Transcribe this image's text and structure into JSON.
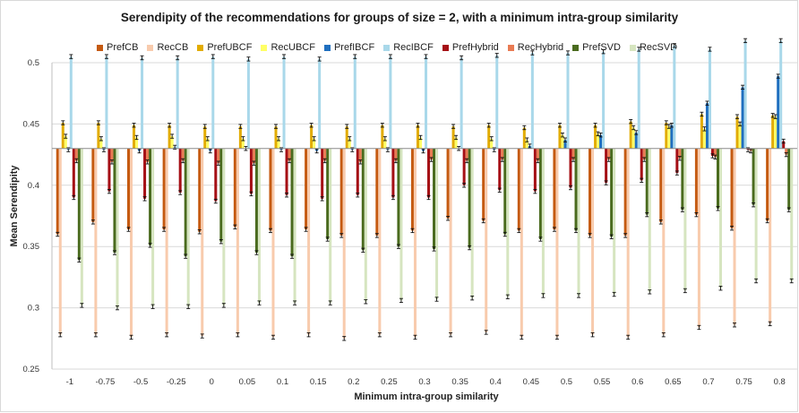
{
  "chart_data": {
    "type": "bar",
    "title": "Serendipity of the recommendations for groups of size = 2, with a minimum intra-group similarity",
    "xlabel": "Minimum intra-group similarity",
    "ylabel": "Mean Serendipity",
    "ylim": [
      0.25,
      0.5
    ],
    "yticks": [
      "0.25",
      "0.3",
      "0.35",
      "0.4",
      "0.45",
      "0.5"
    ],
    "baseline": 0.43,
    "grid": true,
    "legend_position": "top",
    "categories": [
      "-1",
      "-0.75",
      "-0.5",
      "-0.25",
      "0",
      "0.05",
      "0.1",
      "0.15",
      "0.2",
      "0.25",
      "0.3",
      "0.35",
      "0.4",
      "0.45",
      "0.5",
      "0.55",
      "0.6",
      "0.65",
      "0.7",
      "0.75",
      "0.8"
    ],
    "series": [
      {
        "name": "PrefCB",
        "color": "#c55a11",
        "values": [
          0.36,
          0.37,
          0.364,
          0.364,
          0.362,
          0.366,
          0.363,
          0.364,
          0.359,
          0.359,
          0.363,
          0.373,
          0.371,
          0.363,
          0.364,
          0.359,
          0.359,
          0.37,
          0.376,
          0.365,
          0.371
        ]
      },
      {
        "name": "RecCB",
        "color": "#f8cbad",
        "values": [
          0.278,
          0.278,
          0.276,
          0.278,
          0.277,
          0.278,
          0.276,
          0.278,
          0.275,
          0.278,
          0.276,
          0.278,
          0.28,
          0.276,
          0.276,
          0.278,
          0.276,
          0.278,
          0.284,
          0.286,
          0.287
        ]
      },
      {
        "name": "PrefUBCF",
        "color": "#e2ac00",
        "values": [
          0.451,
          0.451,
          0.449,
          0.449,
          0.448,
          0.448,
          0.448,
          0.449,
          0.448,
          0.449,
          0.449,
          0.448,
          0.449,
          0.447,
          0.449,
          0.449,
          0.452,
          0.451,
          0.458,
          0.456,
          0.457
        ]
      },
      {
        "name": "RecUBCF",
        "color": "#ffff66",
        "values": [
          0.44,
          0.438,
          0.439,
          0.44,
          0.438,
          0.438,
          0.438,
          0.438,
          0.438,
          0.438,
          0.439,
          0.439,
          0.438,
          0.437,
          0.441,
          0.442,
          0.447,
          0.448,
          0.446,
          0.45,
          0.456
        ]
      },
      {
        "name": "PrefIBCF",
        "color": "#1f6fbf",
        "values": [
          0.429,
          0.429,
          0.428,
          0.431,
          0.428,
          0.43,
          0.429,
          0.428,
          0.429,
          0.429,
          0.428,
          0.43,
          0.429,
          0.432,
          0.437,
          0.441,
          0.443,
          0.449,
          0.467,
          0.48,
          0.489
        ]
      },
      {
        "name": "RecIBCF",
        "color": "#a9d8ea",
        "values": [
          0.505,
          0.505,
          0.504,
          0.504,
          0.505,
          0.503,
          0.505,
          0.503,
          0.505,
          0.505,
          0.505,
          0.504,
          0.506,
          0.508,
          0.508,
          0.509,
          0.511,
          0.514,
          0.511,
          0.518,
          0.518
        ]
      },
      {
        "name": "PrefHybrid",
        "color": "#a50f15",
        "values": [
          0.39,
          0.395,
          0.389,
          0.394,
          0.387,
          0.393,
          0.392,
          0.389,
          0.392,
          0.39,
          0.39,
          0.4,
          0.396,
          0.395,
          0.398,
          0.402,
          0.404,
          0.41,
          0.424,
          0.429,
          0.436
        ]
      },
      {
        "name": "RecHybrid",
        "color": "#e97b53",
        "values": [
          0.42,
          0.419,
          0.419,
          0.42,
          0.418,
          0.418,
          0.42,
          0.42,
          0.419,
          0.42,
          0.421,
          0.42,
          0.421,
          0.42,
          0.421,
          0.421,
          0.421,
          0.422,
          0.423,
          0.428,
          0.425
        ]
      },
      {
        "name": "PrefSVD",
        "color": "#4a6b1e",
        "values": [
          0.339,
          0.345,
          0.351,
          0.342,
          0.354,
          0.345,
          0.342,
          0.356,
          0.347,
          0.35,
          0.348,
          0.349,
          0.36,
          0.356,
          0.363,
          0.358,
          0.376,
          0.38,
          0.381,
          0.384,
          0.38
        ]
      },
      {
        "name": "RecSVD",
        "color": "#d6e5c0",
        "values": [
          0.302,
          0.3,
          0.301,
          0.301,
          0.302,
          0.304,
          0.304,
          0.304,
          0.305,
          0.306,
          0.307,
          0.308,
          0.309,
          0.31,
          0.31,
          0.311,
          0.313,
          0.314,
          0.316,
          0.322,
          0.322
        ]
      }
    ]
  }
}
